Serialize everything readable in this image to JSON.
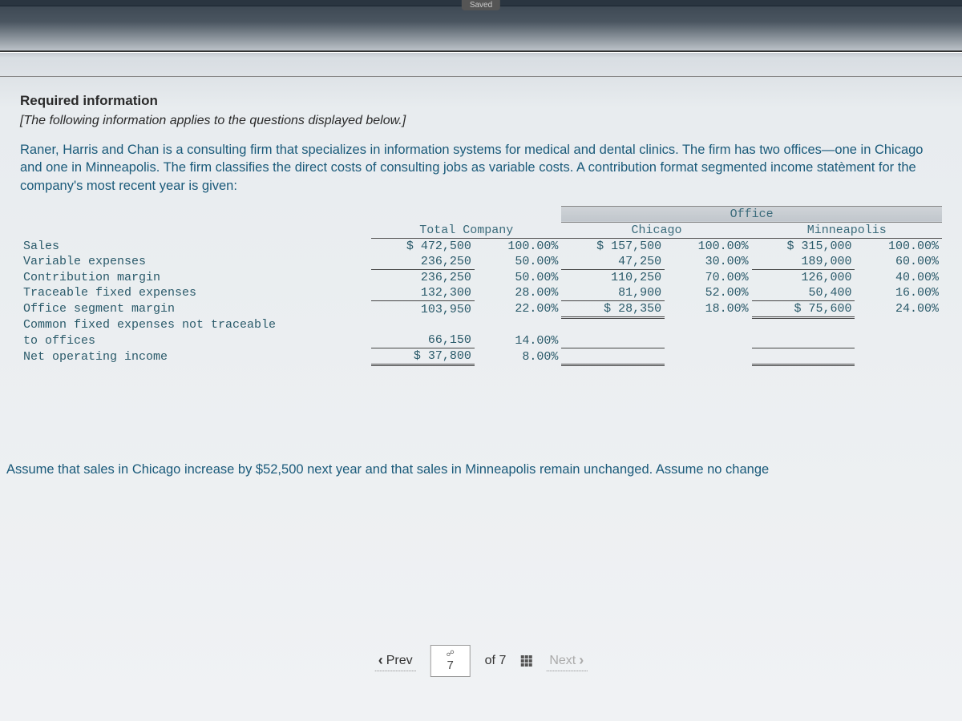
{
  "saved_label": "Saved",
  "heading": "Required information",
  "subheading": "[The following information applies to the questions displayed below.]",
  "paragraph": "Raner, Harris and Chan is a consulting firm that specializes in information systems for medical and dental clinics. The firm has two offices—one in Chicago and one in Minneapolis. The firm classifies the direct costs of consulting jobs as variable costs. A contribution format segmented income statèment for the company's most recent year is given:",
  "table": {
    "super_header": "Office",
    "segments": [
      "Total Company",
      "Chicago",
      "Minneapolis"
    ],
    "rows": [
      {
        "label": "Sales",
        "tc_amt": "$ 472,500",
        "tc_pct": "100.00%",
        "ch_amt": "$ 157,500",
        "ch_pct": "100.00%",
        "mn_amt": "$ 315,000",
        "mn_pct": "100.00%"
      },
      {
        "label": "Variable expenses",
        "tc_amt": "236,250",
        "tc_pct": "50.00%",
        "ch_amt": "47,250",
        "ch_pct": "30.00%",
        "mn_amt": "189,000",
        "mn_pct": "60.00%"
      },
      {
        "label": "Contribution margin",
        "tc_amt": "236,250",
        "tc_pct": "50.00%",
        "ch_amt": "110,250",
        "ch_pct": "70.00%",
        "mn_amt": "126,000",
        "mn_pct": "40.00%"
      },
      {
        "label": "Traceable fixed expenses",
        "tc_amt": "132,300",
        "tc_pct": "28.00%",
        "ch_amt": "81,900",
        "ch_pct": "52.00%",
        "mn_amt": "50,400",
        "mn_pct": "16.00%"
      },
      {
        "label": "Office segment margin",
        "tc_amt": "103,950",
        "tc_pct": "22.00%",
        "ch_amt": "$ 28,350",
        "ch_pct": "18.00%",
        "mn_amt": "$ 75,600",
        "mn_pct": "24.00%"
      },
      {
        "label": "Common fixed expenses not traceable",
        "tc_amt": "",
        "tc_pct": "",
        "ch_amt": "",
        "ch_pct": "",
        "mn_amt": "",
        "mn_pct": ""
      },
      {
        "label": "to offices",
        "indent": true,
        "tc_amt": "66,150",
        "tc_pct": "14.00%",
        "ch_amt": "",
        "ch_pct": "",
        "mn_amt": "",
        "mn_pct": ""
      },
      {
        "label": "Net operating income",
        "tc_amt": "$ 37,800",
        "tc_pct": "8.00%",
        "ch_amt": "",
        "ch_pct": "",
        "mn_amt": "",
        "mn_pct": ""
      }
    ]
  },
  "assume_text": "Assume that sales in Chicago increase by $52,500 next year and that sales in Minneapolis remain unchanged. Assume no change",
  "nav": {
    "prev": "Prev",
    "next": "Next",
    "page": "7",
    "of": "of 7"
  }
}
